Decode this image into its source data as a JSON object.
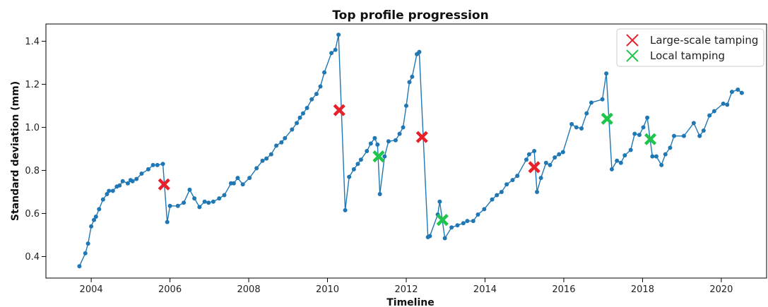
{
  "chart_data": {
    "type": "line",
    "title": "Top profile progression",
    "xlabel": "Timeline",
    "ylabel": "Standard deviation (mm)",
    "xlim": [
      2002.85,
      2021.15
    ],
    "ylim": [
      0.3,
      1.48
    ],
    "xticks": [
      2004,
      2006,
      2008,
      2010,
      2012,
      2014,
      2016,
      2018,
      2020
    ],
    "xtick_labels": [
      "2004",
      "2006",
      "2008",
      "2010",
      "2012",
      "2014",
      "2016",
      "2018",
      "2020"
    ],
    "yticks": [
      0.4,
      0.6,
      0.8,
      1.0,
      1.2,
      1.4
    ],
    "ytick_labels": [
      "0.4",
      "0.6",
      "0.8",
      "1.0",
      "1.2",
      "1.4"
    ],
    "grid": false,
    "legend_position": "top-right",
    "colors": {
      "line": "#1f77b4",
      "large": "#e8202a",
      "local": "#1fc44a"
    },
    "series": [
      {
        "marker": "circle-line",
        "x": [
          2003.7,
          2003.85,
          2003.92,
          2004.0,
          2004.07,
          2004.12,
          2004.2,
          2004.3,
          2004.4,
          2004.45,
          2004.55,
          2004.65,
          2004.72,
          2004.8,
          2004.93,
          2005.0,
          2005.05,
          2005.15,
          2005.28,
          2005.45,
          2005.57,
          2005.68,
          2005.82,
          2005.93,
          2006.0,
          2006.2,
          2006.35,
          2006.5,
          2006.62,
          2006.75,
          2006.88,
          2006.98,
          2007.1,
          2007.25,
          2007.38,
          2007.55,
          2007.62,
          2007.72,
          2007.85,
          2008.02,
          2008.2,
          2008.35,
          2008.45,
          2008.57,
          2008.7,
          2008.83,
          2008.92,
          2009.1,
          2009.22,
          2009.3,
          2009.38,
          2009.48,
          2009.6,
          2009.72,
          2009.82,
          2009.92,
          2010.1,
          2010.2,
          2010.28,
          2010.45,
          2010.55,
          2010.67,
          2010.77,
          2010.85,
          2011.0,
          2011.1,
          2011.2,
          2011.27,
          2011.33,
          2011.45,
          2011.55,
          2011.73,
          2011.83,
          2011.92,
          2012.0,
          2012.08,
          2012.15,
          2012.27,
          2012.33,
          2012.55,
          2012.6,
          2012.8,
          2012.85,
          2012.98,
          2013.15,
          2013.3,
          2013.45,
          2013.55,
          2013.7,
          2013.82,
          2013.98,
          2014.18,
          2014.3,
          2014.42,
          2014.55,
          2014.7,
          2014.82,
          2015.05,
          2015.12,
          2015.25,
          2015.32,
          2015.42,
          2015.55,
          2015.65,
          2015.77,
          2015.88,
          2015.98,
          2016.2,
          2016.32,
          2016.45,
          2016.58,
          2016.7,
          2016.98,
          2017.08,
          2017.22,
          2017.35,
          2017.45,
          2017.55,
          2017.7,
          2017.8,
          2017.92,
          2018.02,
          2018.12,
          2018.25,
          2018.35,
          2018.48,
          2018.58,
          2018.7,
          2018.8,
          2019.05,
          2019.3,
          2019.45,
          2019.55,
          2019.7,
          2019.82,
          2020.05,
          2020.15,
          2020.27,
          2020.42,
          2020.52
        ],
        "y": [
          0.355,
          0.415,
          0.46,
          0.54,
          0.57,
          0.585,
          0.62,
          0.665,
          0.69,
          0.705,
          0.705,
          0.725,
          0.73,
          0.75,
          0.74,
          0.755,
          0.75,
          0.76,
          0.785,
          0.805,
          0.825,
          0.825,
          0.83,
          0.56,
          0.635,
          0.635,
          0.65,
          0.71,
          0.67,
          0.63,
          0.655,
          0.65,
          0.655,
          0.67,
          0.685,
          0.74,
          0.74,
          0.765,
          0.735,
          0.765,
          0.81,
          0.845,
          0.855,
          0.875,
          0.915,
          0.93,
          0.95,
          0.99,
          1.02,
          1.045,
          1.065,
          1.09,
          1.13,
          1.155,
          1.19,
          1.255,
          1.345,
          1.36,
          1.43,
          0.615,
          0.77,
          0.805,
          0.83,
          0.85,
          0.89,
          0.925,
          0.95,
          0.92,
          0.69,
          0.865,
          0.935,
          0.94,
          0.97,
          1.0,
          1.1,
          1.21,
          1.235,
          1.34,
          1.35,
          0.49,
          0.495,
          0.595,
          0.655,
          0.485,
          0.535,
          0.545,
          0.555,
          0.565,
          0.565,
          0.595,
          0.62,
          0.665,
          0.685,
          0.7,
          0.735,
          0.755,
          0.775,
          0.85,
          0.875,
          0.89,
          0.7,
          0.765,
          0.835,
          0.825,
          0.86,
          0.875,
          0.885,
          1.015,
          1.0,
          0.995,
          1.065,
          1.115,
          1.13,
          1.25,
          0.805,
          0.845,
          0.835,
          0.87,
          0.895,
          0.97,
          0.965,
          1.0,
          1.045,
          0.865,
          0.865,
          0.825,
          0.875,
          0.905,
          0.96,
          0.96,
          1.02,
          0.96,
          0.985,
          1.055,
          1.075,
          1.11,
          1.105,
          1.165,
          1.175,
          1.16
        ]
      },
      {
        "name": "Large-scale tamping",
        "marker": "x",
        "x": [
          2005.85,
          2010.3,
          2012.4,
          2015.25
        ],
        "y": [
          0.735,
          1.08,
          0.955,
          0.815
        ]
      },
      {
        "name": "Local tamping",
        "marker": "x",
        "x": [
          2011.3,
          2012.92,
          2017.1,
          2018.2
        ],
        "y": [
          0.865,
          0.57,
          1.04,
          0.945
        ]
      }
    ]
  }
}
